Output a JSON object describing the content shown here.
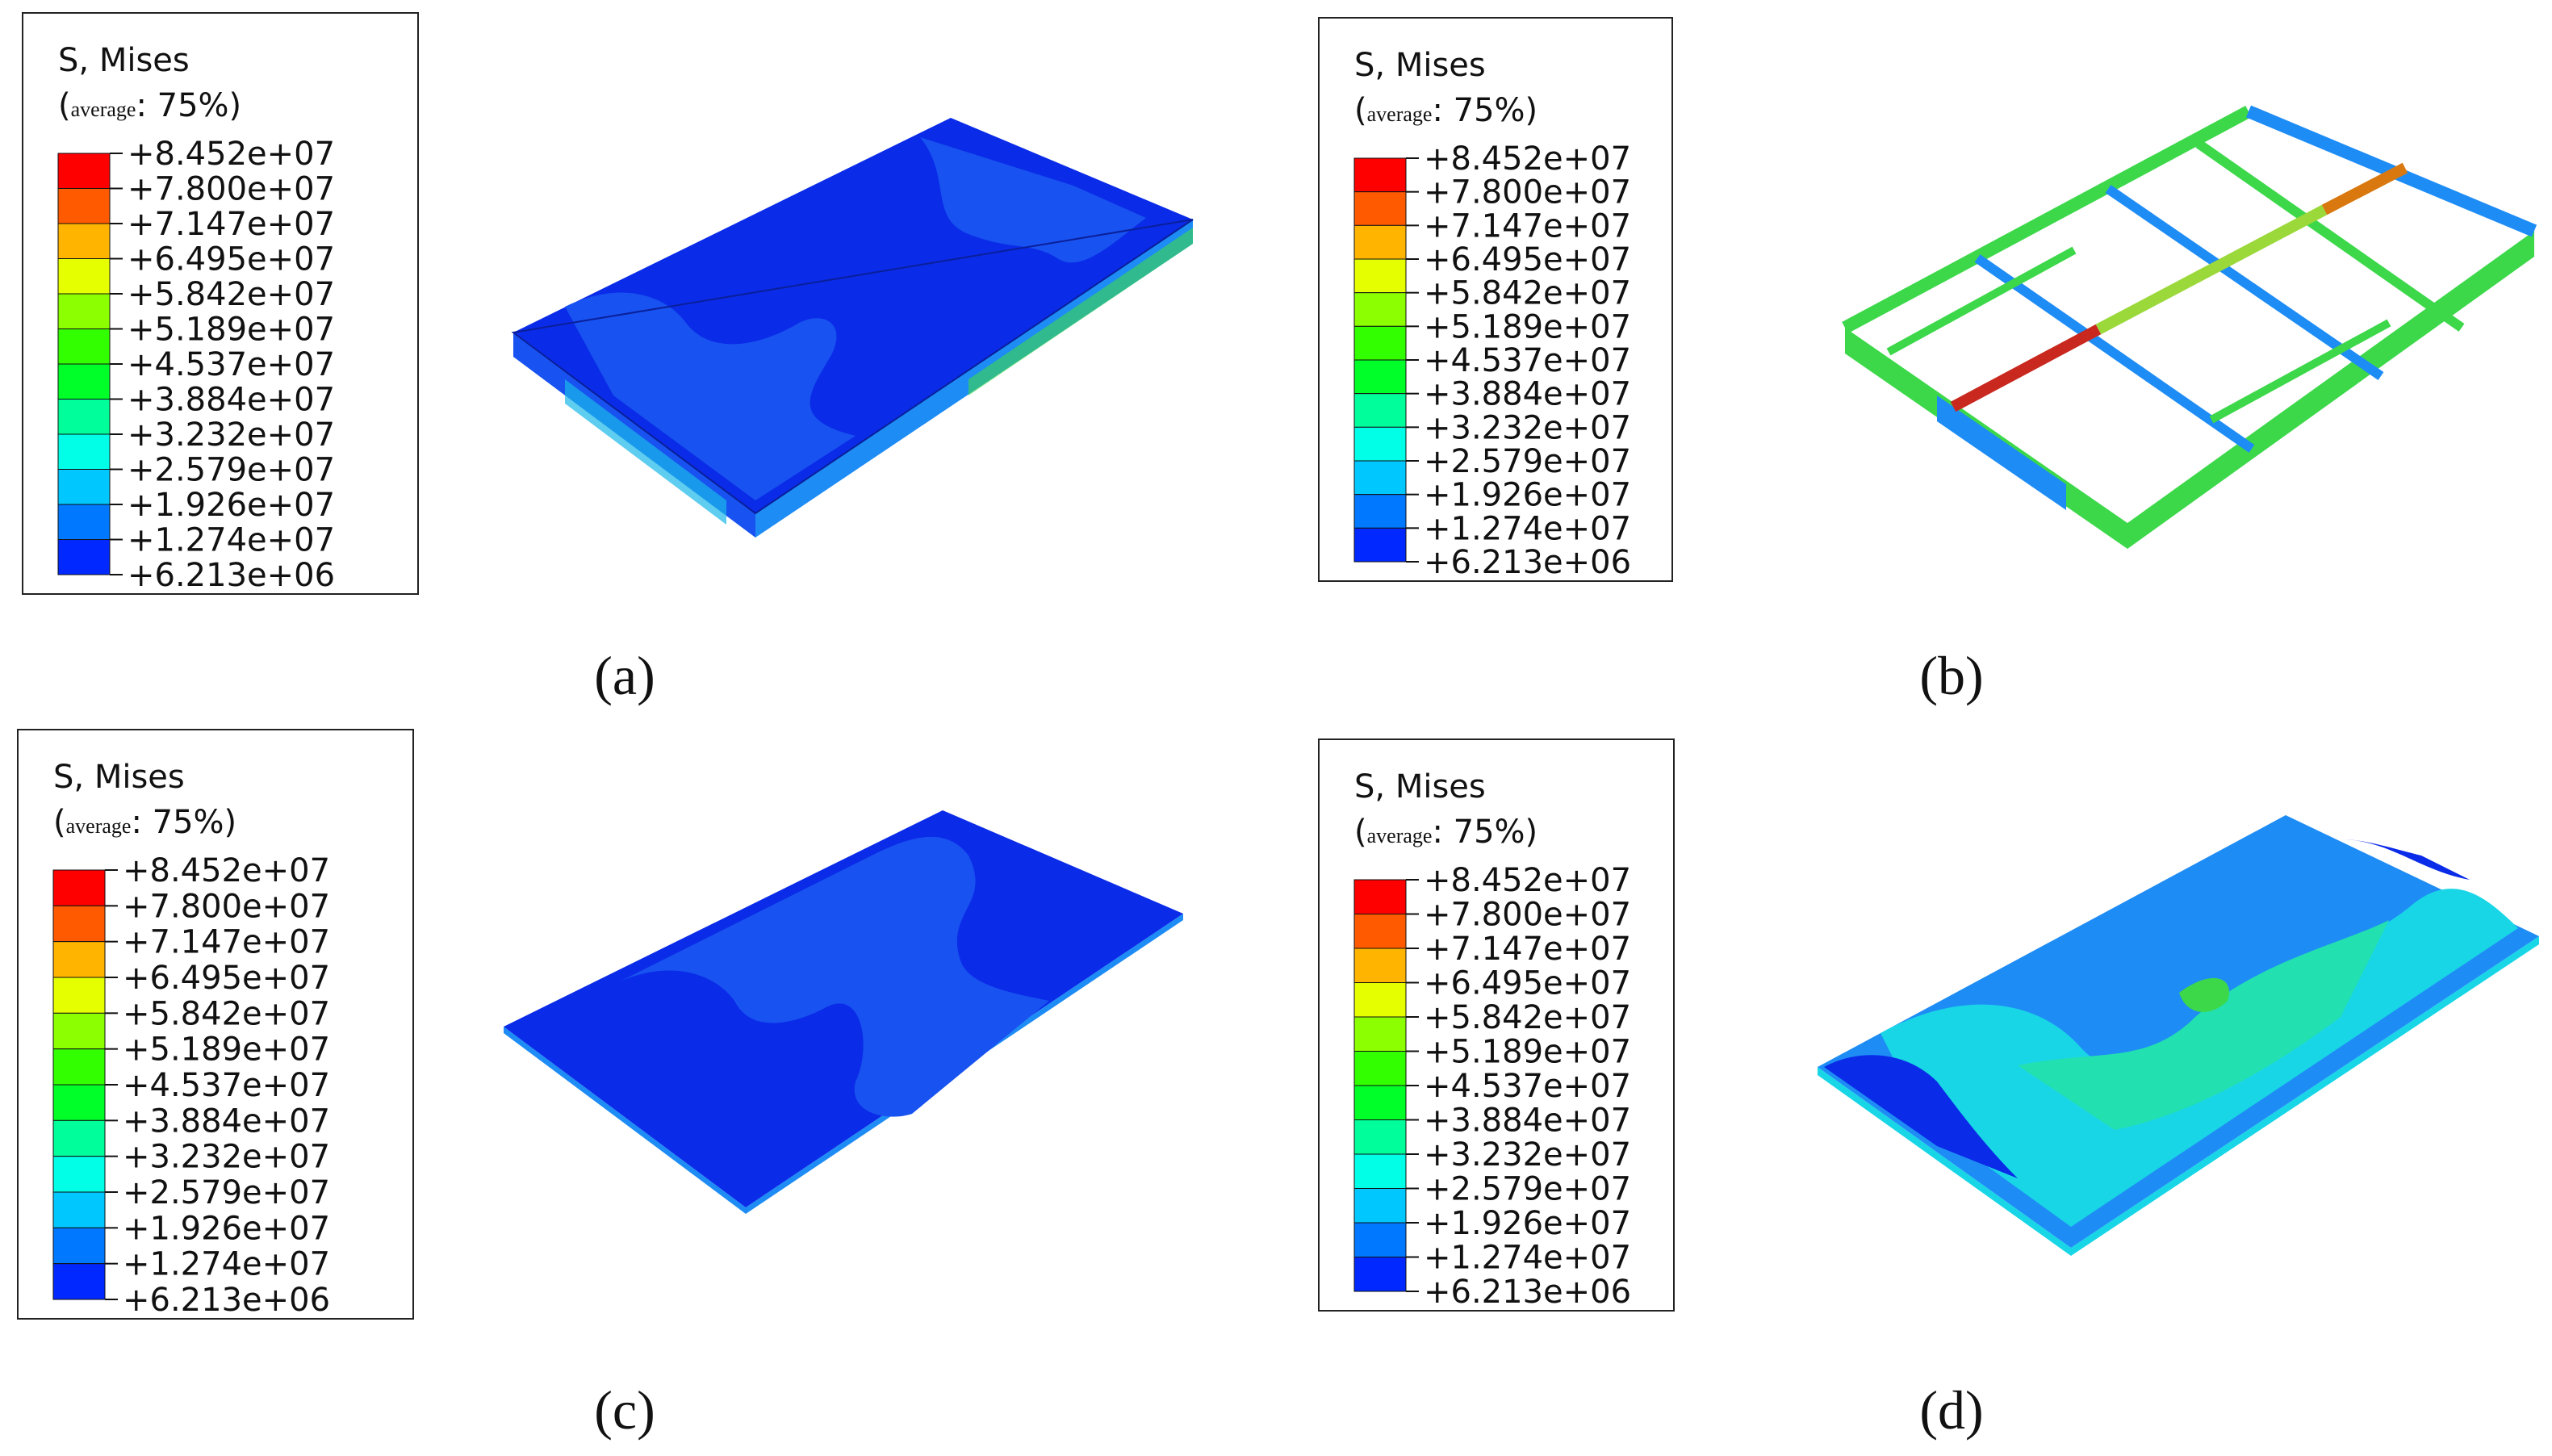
{
  "legend": {
    "title": "S, Mises",
    "subtitle_small": "average",
    "subtitle_big": ": 75%",
    "paren_open": "(",
    "paren_close": ")",
    "values": [
      "+8.452e+07",
      "+7.800e+07",
      "+7.147e+07",
      "+6.495e+07",
      "+5.842e+07",
      "+5.189e+07",
      "+4.537e+07",
      "+3.884e+07",
      "+3.232e+07",
      "+2.579e+07",
      "+1.926e+07",
      "+1.274e+07",
      "+6.213e+06"
    ],
    "band_colors": [
      "#ff0000",
      "#ff5a00",
      "#ffb400",
      "#e6ff00",
      "#8cff00",
      "#32ff00",
      "#00ff28",
      "#00ff9b",
      "#00ffe6",
      "#00c8ff",
      "#0078ff",
      "#0028ff"
    ]
  },
  "panels": [
    {
      "id": "a",
      "label": "(a)"
    },
    {
      "id": "b",
      "label": "(b)"
    },
    {
      "id": "c",
      "label": "(c)"
    },
    {
      "id": "d",
      "label": "(d)"
    }
  ],
  "model_colors": {
    "deep_blue": "#0a2be8",
    "mid_blue": "#1852f0",
    "light_blue": "#1e8cf5",
    "cyan": "#19d6e6",
    "teal": "#22e0b0",
    "green": "#3cd84a",
    "lime": "#9bd83a",
    "orange": "#d8780e",
    "red": "#c8281e"
  }
}
